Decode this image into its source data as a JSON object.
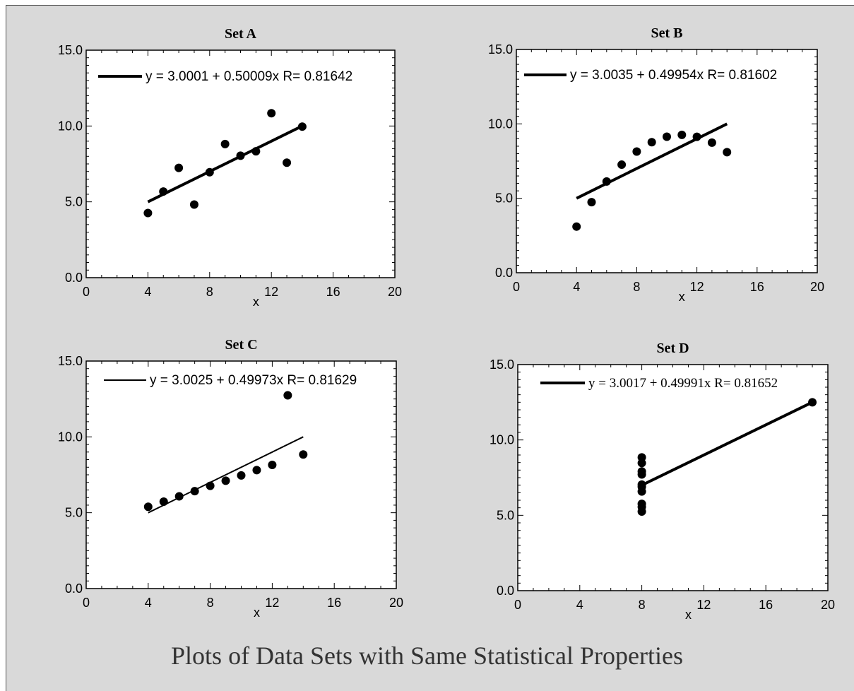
{
  "figure_title": "Plots of Data Sets with Same Statistical Properties",
  "colors": {
    "background": "#d9d9d9",
    "plot_area": "#ffffff",
    "ink": "#000000",
    "title_text": "#333333"
  },
  "chart_data": [
    {
      "type": "scatter",
      "title": "Set A",
      "xlabel": "x",
      "ylabel": "",
      "xlim": [
        0,
        20
      ],
      "ylim": [
        0,
        15
      ],
      "xticks": [
        "0",
        "4",
        "8",
        "12",
        "16",
        "20"
      ],
      "yticks": [
        "0.0",
        "5.0",
        "10.0",
        "15.0"
      ],
      "points": {
        "x": [
          4,
          5,
          6,
          7,
          8,
          9,
          10,
          11,
          12,
          13,
          14
        ],
        "y": [
          4.26,
          5.68,
          7.24,
          4.82,
          6.95,
          8.81,
          8.04,
          8.33,
          10.84,
          7.58,
          9.96
        ]
      },
      "fit": {
        "x": [
          4,
          14
        ],
        "y": [
          5.0,
          10.0
        ]
      },
      "legend": "y = 3.0001 + 0.50009x R= 0.81642",
      "legend_font": "sans"
    },
    {
      "type": "scatter",
      "title": "Set B",
      "xlabel": "x",
      "ylabel": "",
      "xlim": [
        0,
        20
      ],
      "ylim": [
        0,
        15
      ],
      "xticks": [
        "0",
        "4",
        "8",
        "12",
        "16",
        "20"
      ],
      "yticks": [
        "0.0",
        "5.0",
        "10.0",
        "15.0"
      ],
      "points": {
        "x": [
          4,
          5,
          6,
          7,
          8,
          9,
          10,
          11,
          12,
          13,
          14
        ],
        "y": [
          3.1,
          4.74,
          6.13,
          7.26,
          8.14,
          8.77,
          9.14,
          9.26,
          9.13,
          8.74,
          8.1
        ]
      },
      "fit": {
        "x": [
          4,
          14
        ],
        "y": [
          5.0,
          10.0
        ]
      },
      "legend": "y = 3.0035 + 0.49954x R= 0.81602",
      "legend_font": "sans"
    },
    {
      "type": "scatter",
      "title": "Set C",
      "xlabel": "x",
      "ylabel": "",
      "xlim": [
        0,
        20
      ],
      "ylim": [
        0,
        15
      ],
      "xticks": [
        "0",
        "4",
        "8",
        "12",
        "16",
        "20"
      ],
      "yticks": [
        "0.0",
        "5.0",
        "10.0",
        "15.0"
      ],
      "points": {
        "x": [
          4,
          5,
          6,
          7,
          8,
          9,
          10,
          11,
          12,
          13,
          14
        ],
        "y": [
          5.39,
          5.73,
          6.08,
          6.42,
          6.77,
          7.11,
          7.46,
          7.81,
          8.15,
          12.74,
          8.84
        ]
      },
      "fit": {
        "x": [
          4,
          14
        ],
        "y": [
          5.0,
          10.0
        ]
      },
      "legend": "y = 3.0025 + 0.49973x R= 0.81629",
      "legend_font": "sans",
      "fit_thin": true
    },
    {
      "type": "scatter",
      "title": "Set D",
      "xlabel": "x",
      "ylabel": "",
      "xlim": [
        0,
        20
      ],
      "ylim": [
        0,
        15
      ],
      "xticks": [
        "0",
        "4",
        "8",
        "12",
        "16",
        "20"
      ],
      "yticks": [
        "0.0",
        "5.0",
        "10.0",
        "15.0"
      ],
      "points": {
        "x": [
          8,
          8,
          8,
          8,
          8,
          8,
          8,
          8,
          8,
          8,
          19
        ],
        "y": [
          6.58,
          5.76,
          7.71,
          8.84,
          8.47,
          7.04,
          5.25,
          5.56,
          7.91,
          6.89,
          12.5
        ]
      },
      "fit": {
        "x": [
          8,
          19
        ],
        "y": [
          7.0,
          12.5
        ]
      },
      "legend": "y = 3.0017 + 0.49991x R= 0.81652",
      "legend_font": "serif"
    }
  ]
}
